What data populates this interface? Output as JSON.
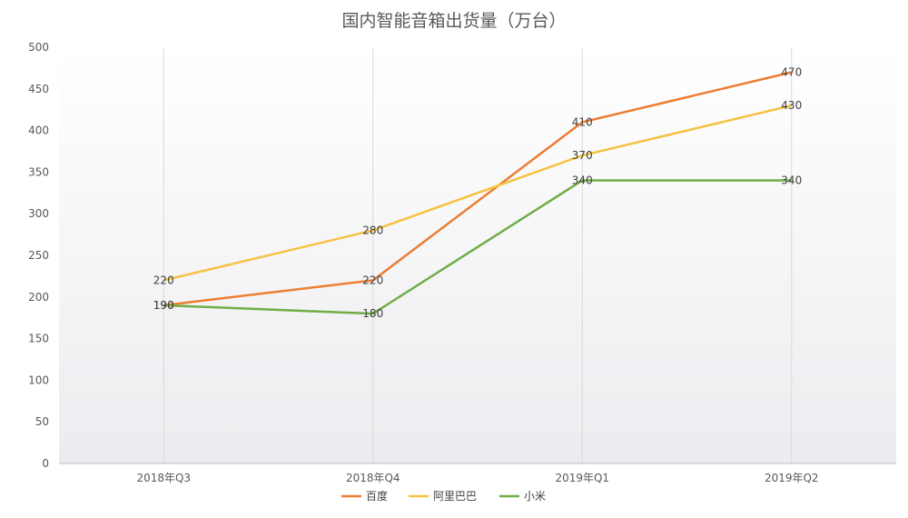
{
  "chart_data": {
    "type": "line",
    "title": "国内智能音箱出货量（万台）",
    "xlabel": "",
    "ylabel": "",
    "categories": [
      "2018年Q3",
      "2018年Q4",
      "2019年Q1",
      "2019年Q2"
    ],
    "ylim": [
      0,
      500
    ],
    "yticks": [
      0,
      50,
      100,
      150,
      200,
      250,
      300,
      350,
      400,
      450,
      500
    ],
    "series": [
      {
        "name": "百度",
        "values": [
          190,
          220,
          410,
          470
        ],
        "color": "#ED7D31"
      },
      {
        "name": "阿里巴巴",
        "values": [
          220,
          280,
          370,
          430
        ],
        "color": "#F5C242"
      },
      {
        "name": "小米",
        "values": [
          190,
          180,
          340,
          340
        ],
        "color": "#70AD47"
      }
    ],
    "legend_position": "bottom",
    "vertical_gridlines": true,
    "horizontal_gridlines": false,
    "data_labels": true
  }
}
